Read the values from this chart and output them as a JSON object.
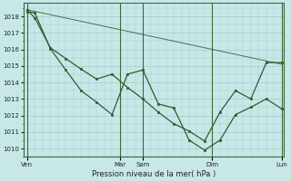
{
  "background_color": "#c8e8e8",
  "grid_color": "#a0cccc",
  "line_color": "#2d5e2d",
  "marker_color": "#2d5e2d",
  "xlabel": "Pression niveau de la mer( hPa )",
  "ylim": [
    1009.5,
    1018.8
  ],
  "yticks": [
    1010,
    1011,
    1012,
    1013,
    1014,
    1015,
    1016,
    1017,
    1018
  ],
  "xtick_labels": [
    "Ven",
    "",
    "",
    "Mar",
    "Sam",
    "",
    "",
    "Dim",
    "",
    "",
    "Lun"
  ],
  "xtick_positions": [
    0,
    6,
    9,
    12,
    15,
    18,
    21,
    24,
    27,
    30,
    33
  ],
  "day_lines": [
    0,
    12,
    15,
    24,
    33
  ],
  "series1_x": [
    0,
    1,
    3,
    5,
    7,
    9,
    11,
    13,
    15,
    17,
    19,
    21,
    23,
    25,
    27,
    29,
    31,
    33
  ],
  "series1_y": [
    1018.3,
    1018.2,
    1016.05,
    1014.75,
    1013.5,
    1012.8,
    1012.05,
    1014.5,
    1014.75,
    1012.7,
    1012.45,
    1010.5,
    1009.9,
    1010.5,
    1012.05,
    1012.5,
    1013.0,
    1012.4
  ],
  "series2_x": [
    0,
    1,
    3,
    5,
    7,
    9,
    11,
    13,
    15,
    17,
    19,
    21,
    23,
    25,
    27,
    29,
    31,
    33
  ],
  "series2_y": [
    1018.4,
    1017.9,
    1016.1,
    1015.45,
    1014.8,
    1014.2,
    1014.5,
    1013.7,
    1013.0,
    1012.2,
    1011.5,
    1011.05,
    1010.45,
    1012.2,
    1013.5,
    1013.0,
    1015.2,
    1015.2
  ],
  "series3_x": [
    0,
    33
  ],
  "series3_y": [
    1018.4,
    1015.1
  ],
  "total_x": 33
}
